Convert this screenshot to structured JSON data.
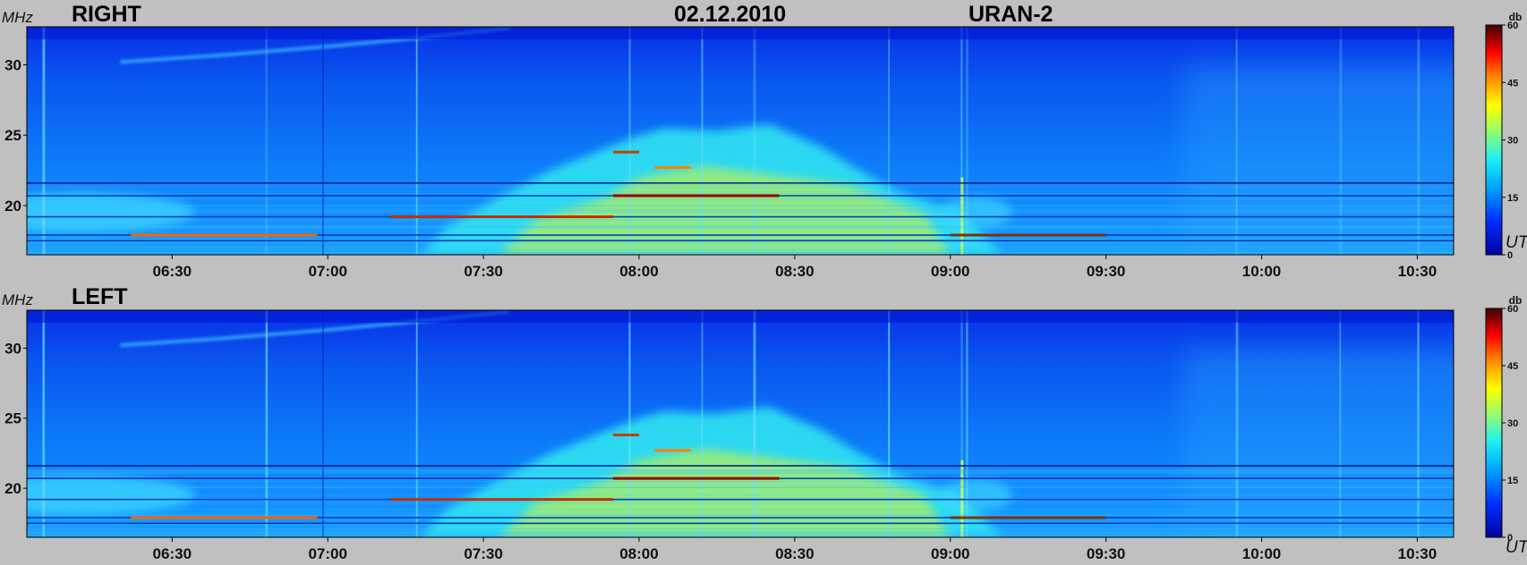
{
  "header": {
    "date": "02.12.2010",
    "instrument": "URAN-2"
  },
  "colors": {
    "background": "#c0c0c0",
    "low": "#1040ff",
    "mid": "#30e0ff",
    "high": "#ffe000",
    "peak": "#800000"
  },
  "chart_data": [
    {
      "type": "heatmap",
      "panel_label": "RIGHT",
      "y_unit": "MHz",
      "x_unit": "UT",
      "xlim": [
        "06:02",
        "10:37"
      ],
      "ylim": [
        16.5,
        32.7
      ],
      "x_ticks": [
        "06:30",
        "07:00",
        "07:30",
        "08:00",
        "08:30",
        "09:00",
        "09:30",
        "10:00",
        "10:30"
      ],
      "y_ticks": [
        20,
        25,
        30
      ],
      "colorbar": {
        "unit": "db",
        "range": [
          0,
          60
        ],
        "ticks": [
          0,
          15,
          30,
          45,
          60
        ]
      },
      "burst_envelope": {
        "start": "07:18",
        "peak": "08:05",
        "end": "08:50",
        "peak_freq_mhz": 25.5
      },
      "narrowband_lines_mhz": [
        21.6,
        20.7,
        19.2,
        17.9,
        17.5
      ]
    },
    {
      "type": "heatmap",
      "panel_label": "LEFT",
      "y_unit": "MHz",
      "x_unit": "UT",
      "xlim": [
        "06:02",
        "10:37"
      ],
      "ylim": [
        16.5,
        32.7
      ],
      "x_ticks": [
        "06:30",
        "07:00",
        "07:30",
        "08:00",
        "08:30",
        "09:00",
        "09:30",
        "10:00",
        "10:30"
      ],
      "y_ticks": [
        20,
        25,
        30
      ],
      "colorbar": {
        "unit": "db",
        "range": [
          0,
          60
        ],
        "ticks": [
          0,
          15,
          30,
          45,
          60
        ]
      },
      "burst_envelope": {
        "start": "07:18",
        "peak": "08:05",
        "end": "08:50",
        "peak_freq_mhz": 25.5
      },
      "narrowband_lines_mhz": [
        21.6,
        20.7,
        19.2,
        17.9,
        17.5
      ]
    }
  ]
}
